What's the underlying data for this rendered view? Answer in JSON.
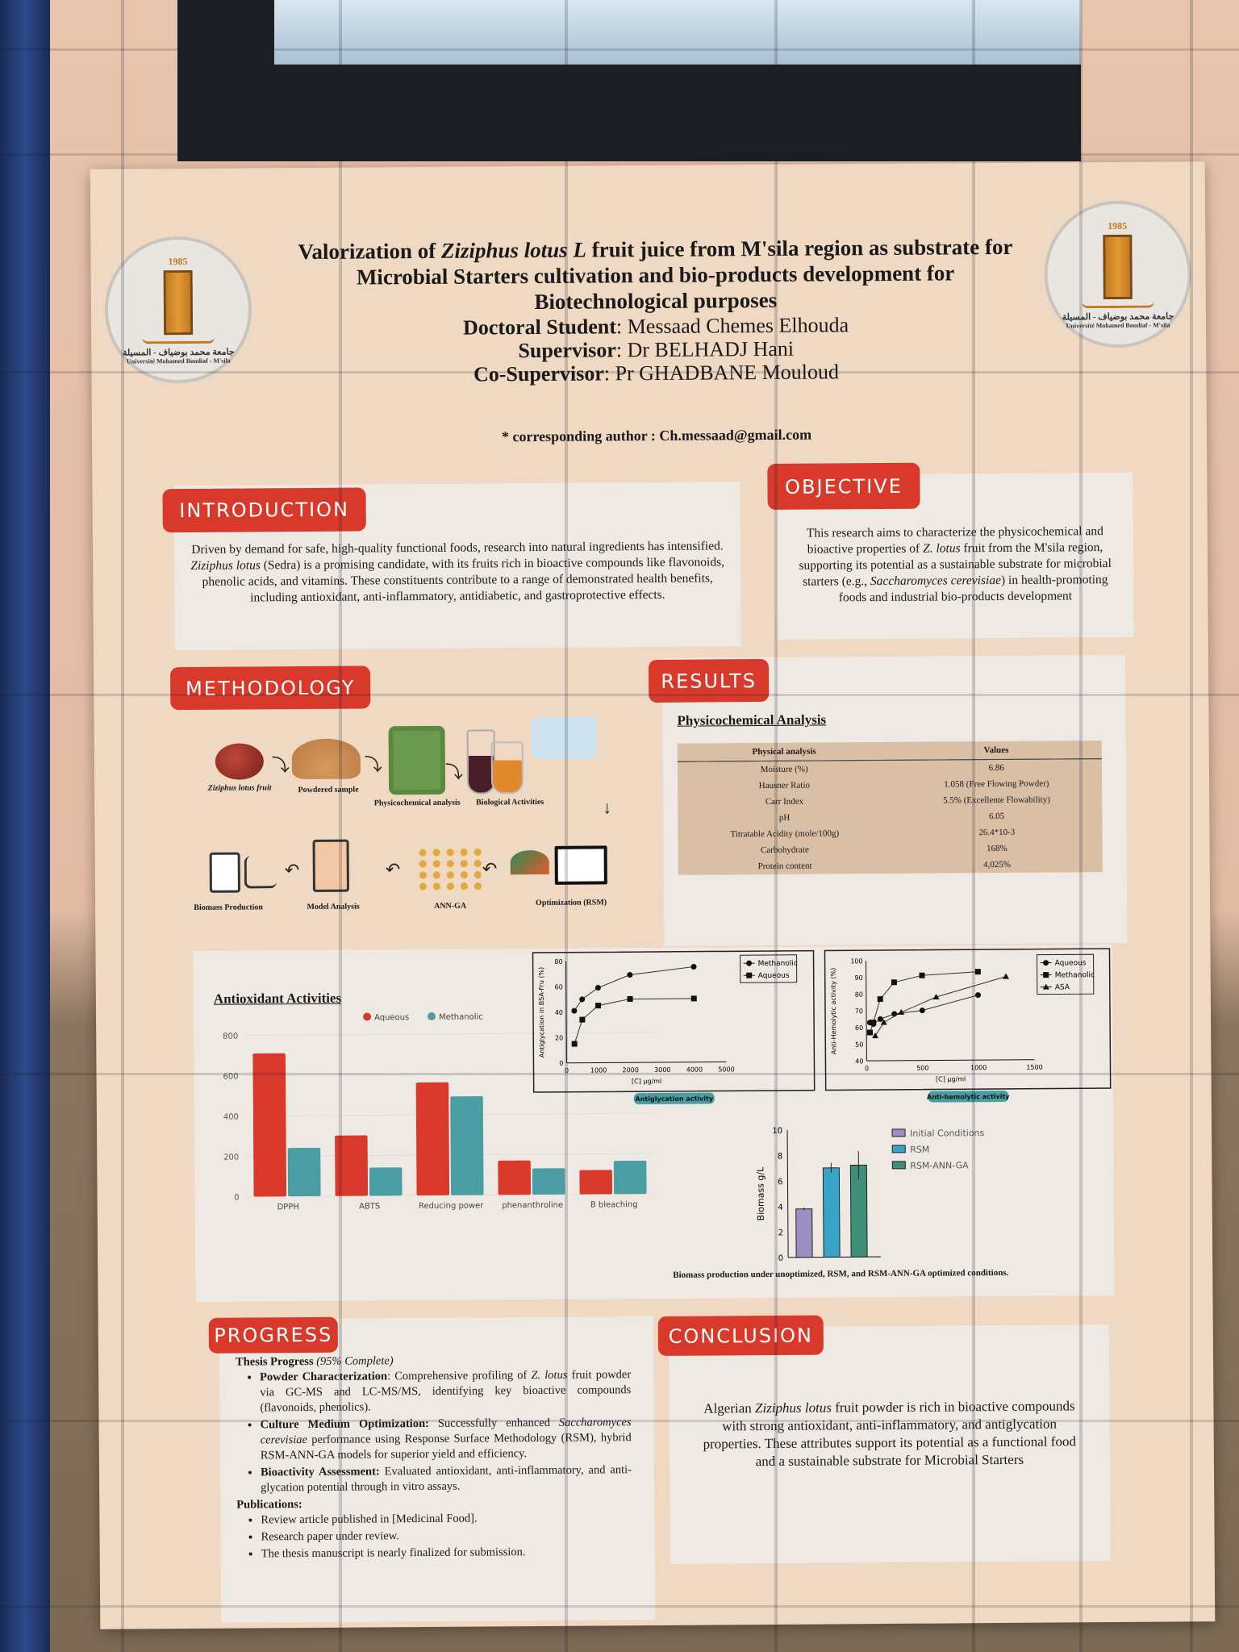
{
  "poster": {
    "title_parts": [
      "Valorization of ",
      "Ziziphus lotus L",
      " fruit juice from M'sila region as substrate for",
      "Microbial Starters cultivation and bio-products development for",
      "Biotechnological purposes"
    ],
    "doctoral_label": "Doctoral Student",
    "doctoral_value": ": Messaad Chemes Elhouda",
    "supervisor_label": "Supervisor",
    "supervisor_value": ": Dr BELHADJ Hani",
    "cosupervisor_label": "Co-Supervisor",
    "cosupervisor_value": ":   Pr GHADBANE Mouloud",
    "corresponding": "* corresponding author : Ch.messaad@gmail.com",
    "logo": {
      "year": "1985",
      "arabic": "جامعة محمد بوضياف - المسيلة",
      "french": "Université Mohamed Boudiaf - M'sila"
    }
  },
  "introduction": {
    "header": "INTRODUCTION",
    "text_a": "Driven by demand for safe, high-quality functional foods, research into natural ingredients has intensified. ",
    "text_italic": "Ziziphus lotus",
    "text_b": " (Sedra) is a promising candidate, with its fruits rich in bioactive compounds like flavonoids, phenolic acids, and vitamins. These constituents contribute to a range of demonstrated health benefits, including antioxidant, anti-inflammatory, antidiabetic, and gastroprotective effects."
  },
  "objective": {
    "header": "OBJECTIVE",
    "text_a": "This research aims to characterize the physicochemical and bioactive properties of ",
    "italic_a": "Z. lotus",
    "text_b": " fruit from the M'sila region, supporting its potential as a sustainable substrate for microbial starters (e.g., ",
    "italic_b": "Saccharomyces cerevisiae",
    "text_c": ") in health-promoting foods and industrial bio-products development"
  },
  "methodology": {
    "header": "METHODOLOGY",
    "steps": [
      "Ziziphus lotus fruit",
      "Powdered sample",
      "Physicochemical analysis",
      "Biological Activities",
      "Optimization (RSM)",
      "ANN-GA",
      "Model Analysis",
      "Biomass Production"
    ]
  },
  "results": {
    "header": "RESULTS",
    "physico_title": "Physicochemical Analysis",
    "table_headers": [
      "Physical analysis",
      "Values"
    ],
    "table_rows": [
      [
        "Moisture (%)",
        "6.86"
      ],
      [
        "Hausner Ratio",
        "1.058 (Free Flowing Powder)"
      ],
      [
        "Carr Index",
        "5.5% (Excellente Flowability)"
      ],
      [
        "pH",
        "6.05"
      ],
      [
        "Titratable Acidity (mole/100g)",
        "26.4*10-3"
      ],
      [
        "Carbohydrate",
        "168%"
      ],
      [
        "Protein content",
        "4,025%"
      ]
    ]
  },
  "chart_data": [
    {
      "type": "bar",
      "title": "Antioxidant Activities",
      "categories": [
        "DPPH",
        "ABTS",
        "Reducing power",
        "phenanthroline",
        "B bleaching"
      ],
      "series": [
        {
          "name": "Aqueous",
          "values": [
            710,
            300,
            560,
            170,
            120
          ],
          "color": "#d8392b"
        },
        {
          "name": "Methanolic",
          "values": [
            240,
            140,
            490,
            130,
            165
          ],
          "color": "#4a9ea3"
        }
      ],
      "ylim": [
        0,
        800
      ],
      "yticks": [
        0,
        200,
        400,
        600,
        800
      ],
      "legend": "top"
    },
    {
      "type": "line",
      "caption": "Antiglycation activity",
      "xlabel": "[C] µg/ml",
      "ylabel": "Antiglycation in BSA-Fru (%)",
      "xlim": [
        0,
        5000
      ],
      "ylim": [
        0,
        80
      ],
      "xticks": [
        0,
        1000,
        2000,
        3000,
        4000,
        5000
      ],
      "yticks": [
        0,
        20,
        40,
        60,
        80
      ],
      "legend": "top-right",
      "series": [
        {
          "name": "Methanolic",
          "marker": "circle",
          "x": [
            250,
            500,
            1000,
            2000,
            4000
          ],
          "y": [
            41,
            50,
            59,
            69,
            75
          ]
        },
        {
          "name": "Aqueous",
          "marker": "square",
          "x": [
            250,
            500,
            1000,
            2000,
            4000
          ],
          "y": [
            15,
            34,
            45,
            50,
            50
          ]
        }
      ]
    },
    {
      "type": "line",
      "caption": "Anti-hemolytic activity",
      "xlabel": "[C] µg/ml",
      "ylabel": "Anti-Hemolytic activity (%)",
      "xlim": [
        0,
        1500
      ],
      "ylim": [
        40,
        100
      ],
      "xticks": [
        0,
        500,
        1000,
        1500
      ],
      "yticks": [
        40,
        50,
        60,
        70,
        80,
        90,
        100
      ],
      "legend": "top-right",
      "series": [
        {
          "name": "Aqueous",
          "marker": "circle",
          "x": [
            31,
            62,
            125,
            250,
            500,
            1000
          ],
          "y": [
            63,
            62,
            65,
            68,
            70,
            79
          ]
        },
        {
          "name": "Methanolic",
          "marker": "square",
          "x": [
            31,
            62,
            125,
            250,
            500,
            1000
          ],
          "y": [
            57,
            63,
            77,
            87,
            91,
            93
          ]
        },
        {
          "name": "ASA",
          "marker": "triangle",
          "x": [
            78,
            156,
            312,
            625,
            1250
          ],
          "y": [
            55,
            63,
            69,
            78,
            90
          ]
        }
      ]
    },
    {
      "type": "bar",
      "caption": "Biomass production under unoptimized, RSM, and RSM-ANN-GA optimized conditions.",
      "ylabel": "Biomass g/L",
      "ylim": [
        0,
        10
      ],
      "yticks": [
        0,
        2,
        4,
        6,
        8,
        10
      ],
      "legend": "right",
      "categories": [
        "Initial Conditions",
        "RSM",
        "RSM-ANN-GA"
      ],
      "values": [
        3.8,
        7.0,
        7.2
      ],
      "errors": [
        0.1,
        0.4,
        1.1
      ],
      "colors": [
        "#9a8fc0",
        "#3aa3c9",
        "#3f8f78"
      ]
    }
  ],
  "progress": {
    "header": "PROGRESS",
    "title": "Thesis Progress",
    "percent_text": "(95% Complete)",
    "percent": 95,
    "items": [
      {
        "label": "Powder Characterization",
        "text_a": ": Comprehensive profiling of ",
        "italic": "Z. lotus",
        "text_b": " fruit powder via GC-MS and LC-MS/MS, identifying key bioactive compounds (flavonoids, phenolics)."
      },
      {
        "label": "Culture Medium Optimization:",
        "text_a": " Successfully enhanced ",
        "italic": "Saccharomyces cerevisiae",
        "text_b": " performance using Response Surface Methodology (RSM), hybrid RSM-ANN-GA models for superior yield and efficiency."
      },
      {
        "label": "Bioactivity Assessment:",
        "text_a": " Evaluated antioxidant, anti-inflammatory, and anti-glycation potential through in vitro assays.",
        "italic": "",
        "text_b": ""
      }
    ],
    "publications_title": "Publications:",
    "publications": [
      "Review article published in [Medicinal Food].",
      "Research paper under review.",
      "The thesis manuscript is nearly finalized for submission."
    ]
  },
  "conclusion": {
    "header": "CONCLUSION",
    "text_a": "Algerian ",
    "italic": "Ziziphus lotus",
    "text_b": " fruit powder is rich in bioactive compounds with strong antioxidant, anti-inflammatory, and antiglycation properties. These attributes support its potential as a functional food and  a sustainable substrate for Microbial Starters"
  },
  "colors": {
    "header_red": "#d8392b",
    "aqueous": "#d8392b",
    "methanolic": "#4a9ea3",
    "poster_bg": "#f0d9c2",
    "panel": "#efe9e3"
  }
}
